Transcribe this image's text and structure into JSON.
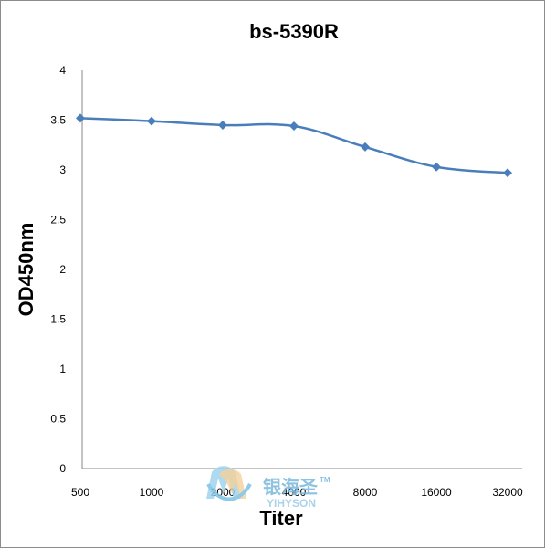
{
  "chart_data": {
    "type": "line",
    "title": "bs-5390R",
    "xlabel": "Titer",
    "ylabel": "OD450nm",
    "categories": [
      "500",
      "1000",
      "2000",
      "4000",
      "8000",
      "16000",
      "32000"
    ],
    "series": [
      {
        "values": [
          3.52,
          3.49,
          3.45,
          3.44,
          3.23,
          3.03,
          2.97
        ]
      }
    ],
    "ylim": [
      0,
      4
    ],
    "yticks": [
      "0",
      "0.5",
      "1",
      "1.5",
      "2",
      "2.5",
      "3",
      "3.5",
      "4"
    ],
    "grid": false,
    "legend": "none",
    "line_color": "#4a7ebb"
  },
  "watermark": {
    "chinese": "银海圣",
    "tm": "TM",
    "latin": "YIHYSON"
  }
}
